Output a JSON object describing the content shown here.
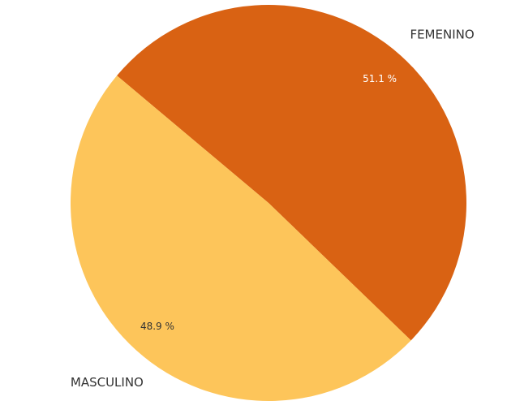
{
  "chart_data": {
    "type": "pie",
    "categories": [
      "FEMENINO",
      "MASCULINO"
    ],
    "values": [
      51.1,
      48.9
    ],
    "value_labels": [
      "51.1 %",
      "48.9 %"
    ],
    "colors": [
      "#d96213",
      "#fdc55a"
    ]
  }
}
